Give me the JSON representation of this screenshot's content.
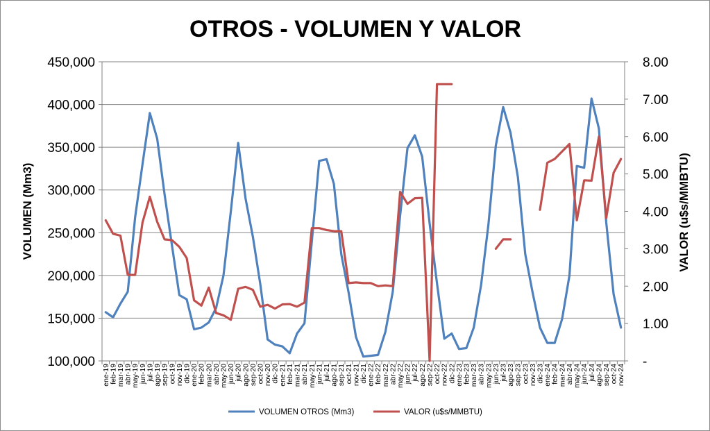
{
  "chart_data": {
    "type": "line",
    "title": "OTROS - VOLUMEN Y VALOR",
    "ylabel": "VOLUMEN (Mm3)",
    "y2label": "VALOR (u$s/MMBTU)",
    "ylim": [
      100000,
      450000
    ],
    "y2lim": [
      0,
      8
    ],
    "yticks": [
      "100,000",
      "150,000",
      "200,000",
      "250,000",
      "300,000",
      "350,000",
      "400,000",
      "450,000"
    ],
    "y2ticks": [
      "-",
      "1.00",
      "2.00",
      "3.00",
      "4.00",
      "5.00",
      "6.00",
      "7.00",
      "8.00"
    ],
    "grid": "horizontal",
    "legend_position": "bottom",
    "categories": [
      "ene-19",
      "feb-19",
      "mar-19",
      "abr-19",
      "may-19",
      "jun-19",
      "jul-19",
      "ago-19",
      "sep-19",
      "oct-19",
      "nov-19",
      "dic-19",
      "ene-20",
      "feb-20",
      "mar-20",
      "abr-20",
      "may-20",
      "jun-20",
      "jul-20",
      "ago-20",
      "sep-20",
      "oct-20",
      "nov-20",
      "dic-20",
      "ene-21",
      "feb-21",
      "mar-21",
      "abr-21",
      "may-21",
      "jun-21",
      "jul-21",
      "ago-21",
      "sep-21",
      "oct-21",
      "nov-21",
      "dic-21",
      "ene-22",
      "feb-22",
      "mar-22",
      "abr-22",
      "may-22",
      "jun-22",
      "jul-22",
      "ago-22",
      "sep-22",
      "oct-22",
      "nov-22",
      "dic-22",
      "ene-23",
      "feb-23",
      "mar-23",
      "abr-23",
      "may-23",
      "jun-23",
      "jul-23",
      "ago-23",
      "sep-23",
      "oct-23",
      "nov-23",
      "dic-23",
      "ene-24",
      "feb-24",
      "mar-24",
      "abr-24",
      "may-24",
      "jun-24",
      "jul-24",
      "ago-24",
      "sep-24",
      "oct-24",
      "nov-24"
    ],
    "series": [
      {
        "name": "VOLUMEN OTROS (Mm3)",
        "axis": "left",
        "color": "#4f81bd",
        "values": [
          157000,
          151000,
          167000,
          181000,
          268000,
          330000,
          390000,
          360000,
          295000,
          235000,
          177000,
          172000,
          137000,
          139000,
          145000,
          162000,
          200000,
          275000,
          355000,
          290000,
          245000,
          190000,
          125000,
          119000,
          117000,
          109000,
          132000,
          144000,
          240000,
          334000,
          336000,
          307000,
          225000,
          180000,
          128000,
          105000,
          106000,
          107000,
          134000,
          181000,
          270000,
          349000,
          364000,
          339000,
          261000,
          191000,
          126000,
          132000,
          114000,
          115000,
          139000,
          189000,
          260000,
          352000,
          397000,
          367000,
          315000,
          225000,
          180000,
          139000,
          121000,
          121000,
          149000,
          200000,
          328000,
          326000,
          407000,
          372000,
          262000,
          178000,
          139000
        ]
      },
      {
        "name": "VALOR (u$s/MMBTU)",
        "axis": "right",
        "color": "#c0504d",
        "values": [
          3.76,
          3.4,
          3.35,
          2.3,
          2.3,
          3.7,
          4.39,
          3.72,
          3.25,
          3.23,
          3.05,
          2.75,
          1.62,
          1.48,
          1.96,
          1.28,
          1.22,
          1.1,
          1.93,
          1.98,
          1.9,
          1.45,
          1.5,
          1.4,
          1.51,
          1.52,
          1.45,
          1.56,
          3.55,
          3.55,
          3.5,
          3.47,
          3.47,
          2.08,
          2.1,
          2.08,
          2.08,
          2.0,
          2.02,
          2.0,
          4.52,
          4.2,
          4.35,
          4.36,
          0.0,
          7.4,
          7.4,
          7.4,
          null,
          null,
          null,
          null,
          null,
          3.0,
          3.25,
          3.25,
          null,
          null,
          null,
          4.04,
          5.3,
          5.4,
          5.6,
          5.8,
          3.76,
          4.83,
          4.82,
          6.0,
          3.82,
          5.03,
          5.4
        ]
      }
    ]
  }
}
